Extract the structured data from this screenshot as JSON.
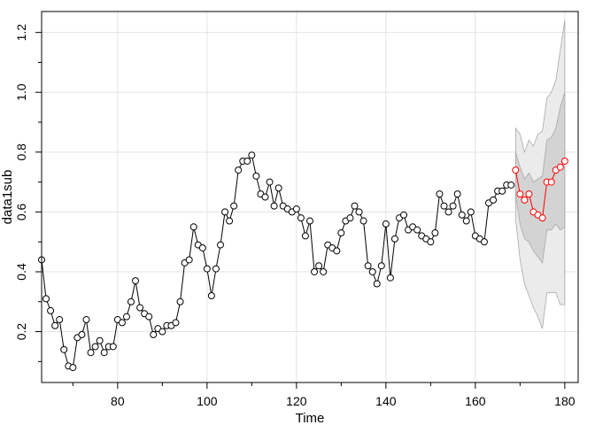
{
  "chart_data": {
    "type": "line",
    "xlabel": "Time",
    "ylabel": "data1sub",
    "xlim": [
      63,
      183
    ],
    "ylim": [
      0.03,
      1.27
    ],
    "grid": true,
    "x_ticks": [
      80,
      100,
      120,
      140,
      160,
      180
    ],
    "x_tick_labels": [
      "80",
      "100",
      "120",
      "140",
      "160",
      "180"
    ],
    "y_ticks": [
      0.2,
      0.4,
      0.6,
      0.8,
      1.0,
      1.2
    ],
    "y_tick_labels": [
      "0.2",
      "0.4",
      "0.6",
      "0.8",
      "1.0",
      "1.2"
    ],
    "y_minor_ticks": [
      0.1,
      0.3,
      0.5,
      0.7,
      0.9,
      1.1
    ],
    "colors": {
      "observed": "#000000",
      "forecast": "#ff0000",
      "band_outer": "#ebebeb",
      "band_inner": "#d3d3d3",
      "band_edge": "#a8a8a8",
      "grid": "#e3e3e3"
    },
    "series": [
      {
        "role": "observed",
        "x": [
          63,
          64,
          65,
          66,
          67,
          68,
          69,
          70,
          71,
          72,
          73,
          74,
          75,
          76,
          77,
          78,
          79,
          80,
          81,
          82,
          83,
          84,
          85,
          86,
          87,
          88,
          89,
          90,
          91,
          92,
          93,
          94,
          95,
          96,
          97,
          98,
          99,
          100,
          101,
          102,
          103,
          104,
          105,
          106,
          107,
          108,
          109,
          110,
          111,
          112,
          113,
          114,
          115,
          116,
          117,
          118,
          119,
          120,
          121,
          122,
          123,
          124,
          125,
          126,
          127,
          128,
          129,
          130,
          131,
          132,
          133,
          134,
          135,
          136,
          137,
          138,
          139,
          140,
          141,
          142,
          143,
          144,
          145,
          146,
          147,
          148,
          149,
          150,
          151,
          152,
          153,
          154,
          155,
          156,
          157,
          158,
          159,
          160,
          161,
          162,
          163,
          164,
          165,
          166,
          167,
          168
        ],
        "y": [
          0.44,
          0.31,
          0.27,
          0.22,
          0.24,
          0.14,
          0.085,
          0.08,
          0.18,
          0.19,
          0.24,
          0.13,
          0.15,
          0.17,
          0.13,
          0.15,
          0.15,
          0.24,
          0.23,
          0.25,
          0.3,
          0.37,
          0.28,
          0.26,
          0.25,
          0.19,
          0.21,
          0.2,
          0.22,
          0.22,
          0.23,
          0.3,
          0.43,
          0.44,
          0.55,
          0.49,
          0.48,
          0.41,
          0.32,
          0.41,
          0.49,
          0.6,
          0.57,
          0.62,
          0.74,
          0.77,
          0.77,
          0.79,
          0.72,
          0.66,
          0.65,
          0.7,
          0.62,
          0.68,
          0.62,
          0.61,
          0.6,
          0.61,
          0.58,
          0.52,
          0.57,
          0.4,
          0.42,
          0.4,
          0.49,
          0.48,
          0.47,
          0.53,
          0.57,
          0.58,
          0.62,
          0.6,
          0.57,
          0.42,
          0.4,
          0.36,
          0.42,
          0.56,
          0.38,
          0.51,
          0.58,
          0.59,
          0.54,
          0.55,
          0.54,
          0.52,
          0.51,
          0.5,
          0.53,
          0.66,
          0.62,
          0.6,
          0.62,
          0.66,
          0.59,
          0.57,
          0.6,
          0.52,
          0.51,
          0.5,
          0.63,
          0.64,
          0.67,
          0.67,
          0.69,
          0.69
        ]
      },
      {
        "role": "forecast",
        "x": [
          169,
          170,
          171,
          172,
          173,
          174,
          175,
          176,
          177,
          178,
          179,
          180
        ],
        "y": [
          0.74,
          0.66,
          0.64,
          0.66,
          0.6,
          0.59,
          0.58,
          0.7,
          0.7,
          0.74,
          0.75,
          0.77
        ]
      }
    ],
    "bands": {
      "x": [
        169,
        170,
        171,
        172,
        173,
        174,
        175,
        176,
        177,
        178,
        179,
        180
      ],
      "outer_upper": [
        0.88,
        0.86,
        0.8,
        0.84,
        0.82,
        0.86,
        0.87,
        0.98,
        1.0,
        1.04,
        1.14,
        1.24
      ],
      "outer_lower": [
        0.58,
        0.44,
        0.36,
        0.32,
        0.28,
        0.25,
        0.21,
        0.33,
        0.33,
        0.33,
        0.29,
        0.29
      ],
      "inner_upper": [
        0.8,
        0.75,
        0.71,
        0.73,
        0.7,
        0.71,
        0.72,
        0.84,
        0.85,
        0.88,
        0.95,
        1.0
      ],
      "inner_lower": [
        0.66,
        0.56,
        0.51,
        0.5,
        0.47,
        0.45,
        0.43,
        0.54,
        0.54,
        0.56,
        0.54,
        0.55
      ]
    }
  }
}
